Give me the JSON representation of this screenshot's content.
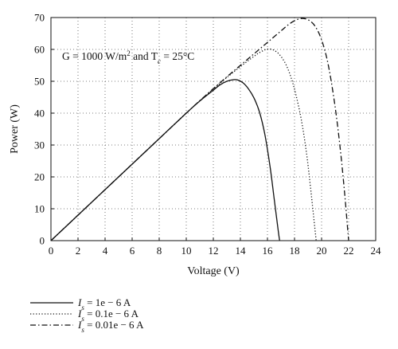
{
  "chart_data": {
    "type": "line",
    "title": "",
    "xlabel": "Voltage (V)",
    "ylabel": "Power (W)",
    "xlim": [
      0,
      24
    ],
    "ylim": [
      0,
      70
    ],
    "xticks": [
      0,
      2,
      4,
      6,
      8,
      10,
      12,
      14,
      16,
      18,
      20,
      22,
      24
    ],
    "yticks": [
      0,
      10,
      20,
      30,
      40,
      50,
      60,
      70
    ],
    "grid": true,
    "grid_style": "dotted",
    "legend_position": "below-left",
    "annotation": {
      "prefix": "G = 1000 W/m",
      "exp": "2",
      "middle": " and T",
      "sub": "c",
      "suffix": " = 25°C"
    },
    "series": [
      {
        "name": "Is = 1e − 6 A",
        "legend": {
          "sym": "I",
          "sub": "s",
          "rest": " = 1e − 6 A"
        },
        "style": "solid",
        "x": [
          0,
          2,
          4,
          6,
          8,
          10,
          11,
          12,
          12.5,
          13,
          13.5,
          13.8,
          14.2,
          14.6,
          15.0,
          15.4,
          15.8,
          16.2,
          16.5,
          16.8,
          16.9
        ],
        "y": [
          0,
          8,
          16,
          24,
          32,
          40,
          43.8,
          47.2,
          48.9,
          50.0,
          50.5,
          50.4,
          49.5,
          47.6,
          44.8,
          40.5,
          33.5,
          23.0,
          13.0,
          3.0,
          0
        ]
      },
      {
        "name": "Is = 0.1e − 6 A",
        "legend": {
          "sym": "I",
          "sub": "s",
          "rest": " = 0.1e − 6 A"
        },
        "style": "dotted",
        "x": [
          0,
          2,
          4,
          6,
          8,
          10,
          11,
          12,
          13,
          14,
          15,
          15.5,
          16.0,
          16.5,
          17.0,
          17.5,
          18.0,
          18.5,
          18.9,
          19.2,
          19.5,
          19.6
        ],
        "y": [
          0,
          8,
          16,
          24,
          32,
          40,
          43.9,
          47.6,
          51.2,
          54.6,
          57.8,
          59.2,
          60.1,
          59.7,
          57.8,
          54.0,
          47.5,
          38.0,
          27.0,
          16.0,
          4.0,
          0
        ]
      },
      {
        "name": "Is = 0.01e − 6 A",
        "legend": {
          "sym": "I",
          "sub": "s",
          "rest": " = 0.01e − 6 A"
        },
        "style": "dashdot",
        "x": [
          0,
          2,
          4,
          6,
          8,
          10,
          11,
          12,
          13,
          14,
          15,
          16,
          17,
          17.5,
          18.0,
          18.5,
          19.0,
          19.5,
          20.0,
          20.5,
          21.0,
          21.4,
          21.7,
          21.9,
          22.0
        ],
        "y": [
          0,
          8,
          16,
          24,
          32,
          40,
          43.9,
          47.7,
          51.4,
          55.0,
          58.6,
          62.2,
          65.8,
          67.6,
          69.0,
          69.7,
          69.3,
          67.4,
          63.0,
          55.0,
          42.0,
          28.0,
          15.0,
          5.0,
          0
        ]
      }
    ]
  }
}
